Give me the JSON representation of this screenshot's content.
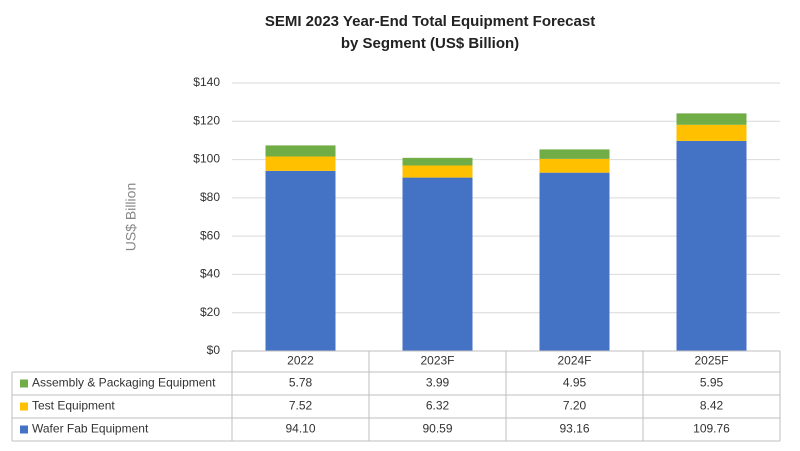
{
  "chart_data": {
    "type": "stacked_bar",
    "title": [
      "SEMI 2023 Year-End Total Equipment Forecast",
      "by Segment (US$ Billion)"
    ],
    "y_label": "US$ Billion",
    "categories": [
      "2022",
      "2023F",
      "2024F",
      "2025F"
    ],
    "series": [
      {
        "name": "Wafer Fab Equipment",
        "color": "#4472c4",
        "values": [
          94.1,
          90.59,
          93.16,
          109.76
        ],
        "value_labels": [
          "94.10",
          "90.59",
          "93.16",
          "109.76"
        ]
      },
      {
        "name": "Test Equipment",
        "color": "#ffc000",
        "values": [
          7.52,
          6.32,
          7.2,
          8.42
        ],
        "value_labels": [
          "7.52",
          "6.32",
          "7.20",
          "8.42"
        ]
      },
      {
        "name": "Assembly & Packaging Equipment",
        "color": "#70ad47",
        "values": [
          5.78,
          3.99,
          4.95,
          5.95
        ],
        "value_labels": [
          "5.78",
          "3.99",
          "4.95",
          "5.95"
        ]
      }
    ],
    "ylim": [
      0,
      140
    ],
    "yticks": [
      {
        "value": 0,
        "label": "$0"
      },
      {
        "value": 20,
        "label": "$20"
      },
      {
        "value": 40,
        "label": "$40"
      },
      {
        "value": 60,
        "label": "$60"
      },
      {
        "value": 80,
        "label": "$80"
      },
      {
        "value": 100,
        "label": "$100"
      },
      {
        "value": 120,
        "label": "$120"
      },
      {
        "value": 140,
        "label": "$140"
      }
    ],
    "grid": true
  }
}
